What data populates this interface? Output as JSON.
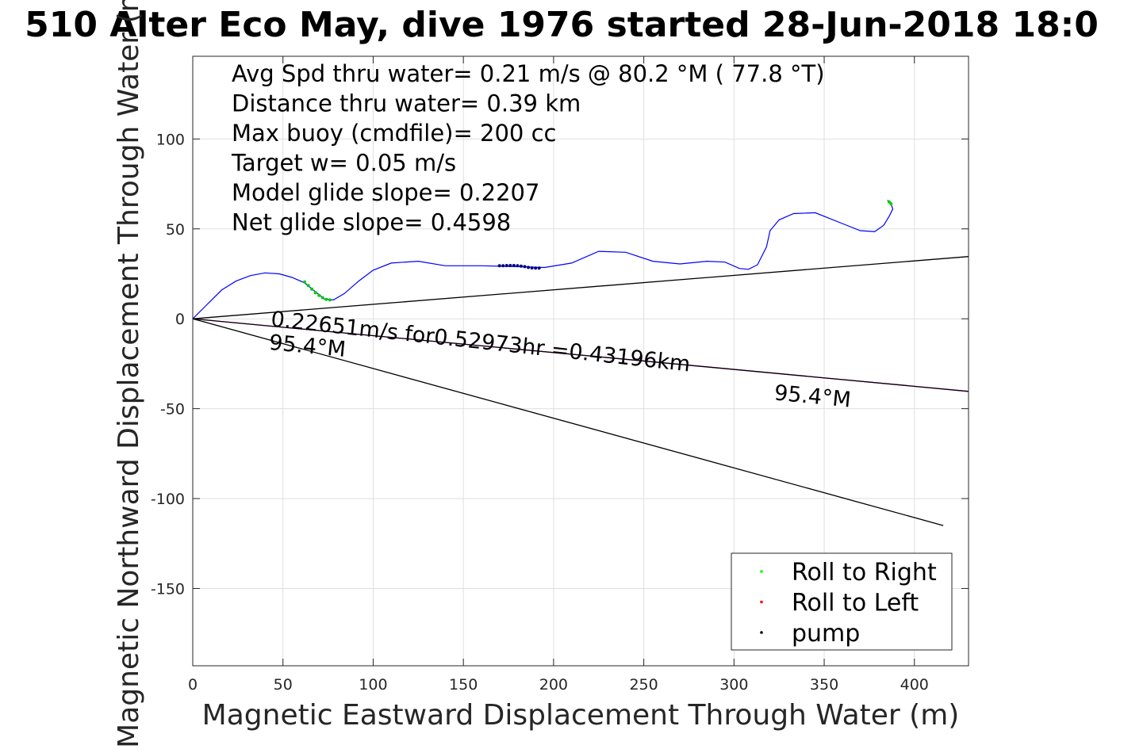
{
  "title": "510 Alter Eco May, dive 1976 started 28-Jun-2018 18:0",
  "chart_data": {
    "type": "line",
    "xlabel": "Magnetic Eastward Displacement Through Water (m)",
    "ylabel": "Magnetic Northward Displacement Through Water (m)",
    "xlim": [
      0,
      430
    ],
    "ylim": [
      -193,
      146
    ],
    "xticks": [
      0,
      50,
      100,
      150,
      200,
      250,
      300,
      350,
      400
    ],
    "yticks": [
      -150,
      -100,
      -50,
      0,
      50,
      100
    ],
    "grid": true,
    "info_lines": [
      "Avg Spd thru water=  0.21 m/s @  80.2 °M ( 77.8 °T)",
      "Distance thru water=  0.39 km",
      "Max buoy (cmdfile)= 200 cc",
      "Target w= 0.05 m/s",
      "Model glide slope= 0.2207",
      "Net glide slope= 0.4598"
    ],
    "annotations": [
      {
        "text": "0.22651m/s for0.52973hr =0.43196km",
        "x": 43,
        "y": -4,
        "angle": 6.2
      },
      {
        "text": "95.4°M",
        "x": 42,
        "y": -17,
        "angle": 5.5
      },
      {
        "text": "95.4°M",
        "x": 322,
        "y": -45,
        "angle": 5.5
      }
    ],
    "series": [
      {
        "name": "track",
        "color": "#0000ff",
        "x": [
          0,
          8,
          16,
          24,
          32,
          40,
          48,
          55,
          62,
          68,
          73,
          78,
          84,
          92,
          100,
          110,
          125,
          140,
          160,
          180,
          195,
          210,
          225,
          240,
          255,
          270,
          285,
          295,
          303,
          308,
          313,
          318,
          320,
          325,
          333,
          345,
          360,
          370,
          378,
          383,
          386,
          388,
          387,
          385
        ],
        "y": [
          0,
          8,
          16,
          21,
          24,
          25.5,
          25,
          23,
          20,
          15,
          11,
          10.5,
          14,
          21,
          27,
          31,
          32,
          29.5,
          29.5,
          29,
          28.5,
          31,
          37.5,
          37,
          32,
          30.5,
          32,
          31.5,
          28,
          27.5,
          30,
          40,
          49,
          55,
          58.5,
          59,
          53,
          49,
          48.5,
          52,
          57,
          61,
          64,
          66
        ]
      },
      {
        "name": "",
        "color": "#000000",
        "x": [
          0,
          430
        ],
        "y": [
          0,
          34.6
        ]
      },
      {
        "name": "",
        "color": "#ff00ff",
        "x": [
          0,
          430
        ],
        "y": [
          0,
          -40.4
        ]
      },
      {
        "name": "",
        "color": "#000000",
        "x": [
          0,
          430
        ],
        "y": [
          0,
          -40.4
        ]
      },
      {
        "name": "",
        "color": "#000000",
        "x": [
          0,
          416
        ],
        "y": [
          0,
          -115
        ]
      }
    ],
    "markers": [
      {
        "name": "Roll to Right",
        "color": "#00cc00",
        "x": [
          62,
          64,
          66,
          68,
          70,
          72,
          74,
          76,
          386,
          387
        ],
        "y": [
          20.5,
          18.5,
          16.5,
          14.5,
          13,
          11.7,
          10.8,
          10.5,
          65,
          64
        ]
      },
      {
        "name": "pump",
        "color": "#000080",
        "x": [
          170,
          172,
          174,
          176,
          178,
          180,
          182,
          184,
          186,
          188,
          190,
          192
        ],
        "y": [
          29.5,
          29.5,
          29.6,
          29.6,
          29.6,
          29.5,
          29.3,
          29,
          28.6,
          28.3,
          28.2,
          28.2
        ]
      }
    ],
    "legend": {
      "position": "bottom-right",
      "entries": [
        {
          "label": "Roll to Right",
          "color": "#00ff00"
        },
        {
          "label": "Roll to Left",
          "color": "#ff0000"
        },
        {
          "label": "pump",
          "color": "#000000"
        }
      ]
    }
  }
}
